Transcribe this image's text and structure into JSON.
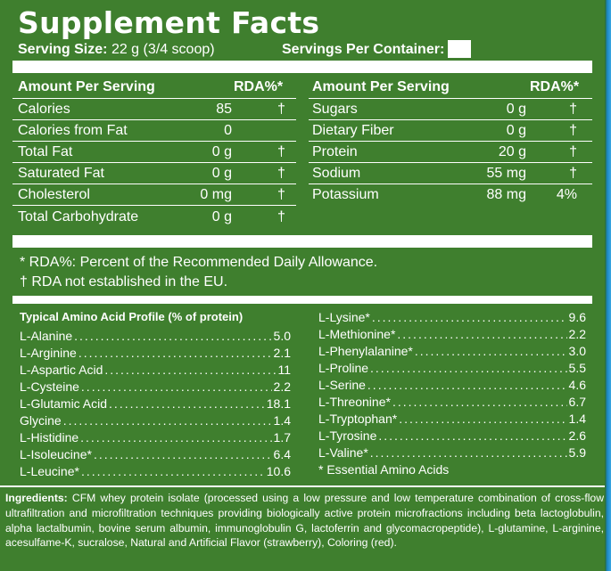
{
  "title": "Supplement Facts",
  "serving_size_label": "Serving Size:",
  "serving_size_value": "22 g (3/4 scoop)",
  "servings_per_container_label": "Servings Per Container:",
  "left_table": {
    "header": {
      "label": "Amount Per Serving",
      "rda": "RDA%*"
    },
    "rows": [
      {
        "name": "Calories",
        "amount": "85",
        "rda": "†"
      },
      {
        "name": "Calories from Fat",
        "amount": "0",
        "rda": ""
      },
      {
        "name": "Total Fat",
        "amount": "0 g",
        "rda": "†"
      },
      {
        "name": "Saturated Fat",
        "amount": "0 g",
        "rda": "†"
      },
      {
        "name": "Cholesterol",
        "amount": "0 mg",
        "rda": "†"
      },
      {
        "name": "Total Carbohydrate",
        "amount": "0 g",
        "rda": "†"
      }
    ]
  },
  "right_table": {
    "header": {
      "label": "Amount Per Serving",
      "rda": "RDA%*"
    },
    "rows": [
      {
        "name": "Sugars",
        "amount": "0 g",
        "rda": "†"
      },
      {
        "name": "Dietary Fiber",
        "amount": "0 g",
        "rda": "†"
      },
      {
        "name": "Protein",
        "amount": "20 g",
        "rda": "†"
      },
      {
        "name": "Sodium",
        "amount": "55 mg",
        "rda": "†"
      },
      {
        "name": "Potassium",
        "amount": "88 mg",
        "rda": "4%"
      }
    ]
  },
  "footnotes": [
    "* RDA%: Percent of the Recommended Daily Allowance.",
    "† RDA not established in the EU."
  ],
  "amino": {
    "title": "Typical Amino Acid Profile (% of protein)",
    "left": [
      {
        "name": "L-Alanine",
        "value": "5.0"
      },
      {
        "name": "L-Arginine",
        "value": "2.1"
      },
      {
        "name": "L-Aspartic Acid",
        "value": "11"
      },
      {
        "name": "L-Cysteine",
        "value": "2.2"
      },
      {
        "name": "L-Glutamic Acid",
        "value": "18.1"
      },
      {
        "name": "Glycine",
        "value": "1.4"
      },
      {
        "name": "L-Histidine",
        "value": "1.7"
      },
      {
        "name": "L-Isoleucine*",
        "value": "6.4"
      },
      {
        "name": "L-Leucine*",
        "value": "10.6"
      }
    ],
    "right": [
      {
        "name": "L-Lysine*",
        "value": "9.6"
      },
      {
        "name": "L-Methionine*",
        "value": "2.2"
      },
      {
        "name": "L-Phenylalanine*",
        "value": "3.0"
      },
      {
        "name": "L-Proline",
        "value": "5.5"
      },
      {
        "name": "L-Serine",
        "value": "4.6"
      },
      {
        "name": "L-Threonine*",
        "value": "6.7"
      },
      {
        "name": "L-Tryptophan*",
        "value": "1.4"
      },
      {
        "name": "L-Tyrosine",
        "value": "2.6"
      },
      {
        "name": "L-Valine*",
        "value": "5.9"
      }
    ],
    "essential_note": "* Essential Amino Acids"
  },
  "ingredients": {
    "label": "Ingredients:",
    "text": "CFM whey protein isolate (processed using a low pressure and low temperature combination of cross-flow ultrafiltration and microfiltration techniques providing biologically active protein microfractions including beta lactoglobulin, alpha lactalbumin, bovine serum albumin, immunoglobulin G, lactoferrin and glycomacropeptide), L-glutamine, L-arginine, acesulfame-K, sucralose, Natural and Artificial Flavor (strawberry), Coloring (red)."
  },
  "colors": {
    "panel": "#3f7f2e",
    "text": "#ffffff",
    "edge_accent": "#1b86c5"
  }
}
